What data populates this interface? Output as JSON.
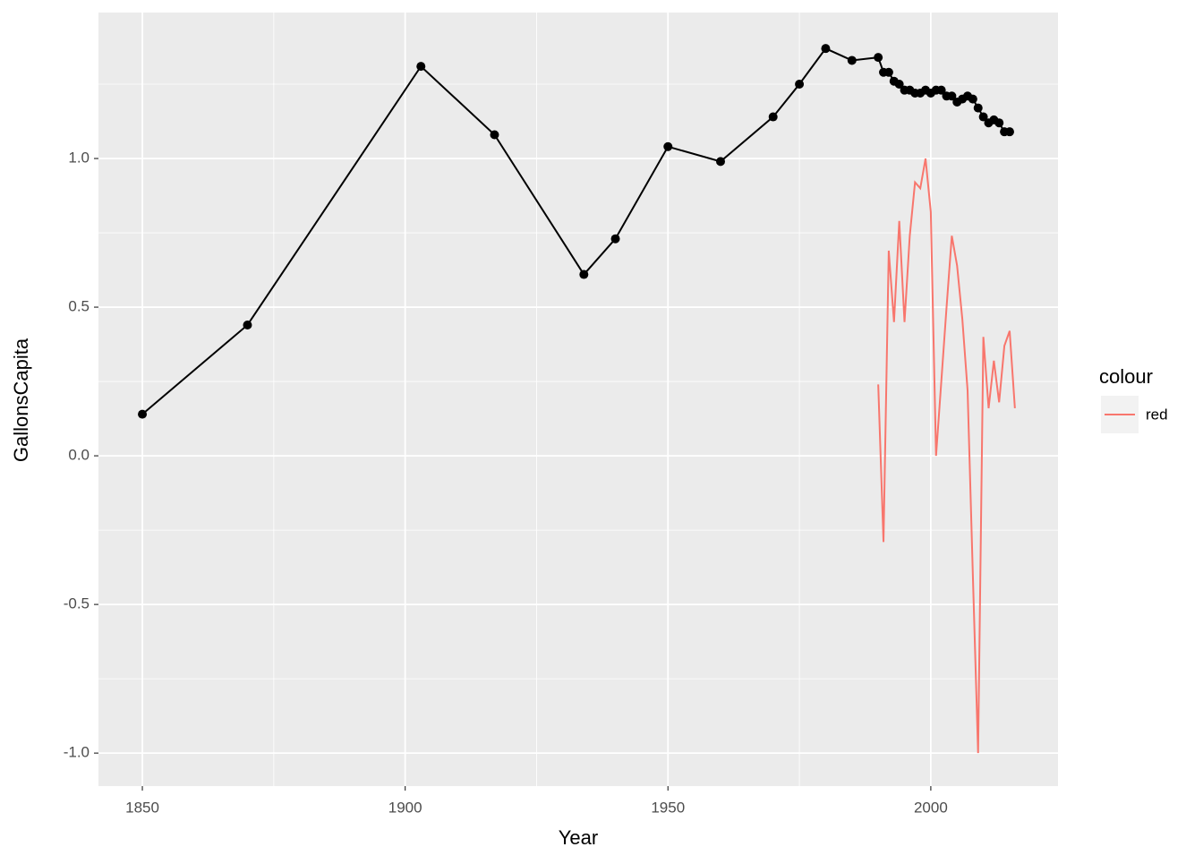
{
  "chart_data": {
    "type": "line",
    "x_label": "Year",
    "y_label": "GallonsCapita",
    "legend_title": "colour",
    "legend_position": "right",
    "xlim": [
      1841.65,
      2024.2
    ],
    "ylim": [
      -1.111,
      1.491
    ],
    "xticks": [
      1850,
      1900,
      1950,
      2000
    ],
    "yticks": [
      {
        "value": -1,
        "label": "-1.0"
      },
      {
        "value": -0.5,
        "label": "-0.5"
      },
      {
        "value": 0,
        "label": "0.0"
      },
      {
        "value": 0.5,
        "label": "0.5"
      },
      {
        "value": 1,
        "label": "1.0"
      }
    ],
    "grid": true,
    "series": [
      {
        "color": "#000000",
        "markers": true,
        "x": [
          1850,
          1870,
          1903,
          1917,
          1934,
          1940,
          1950,
          1960,
          1970,
          1975,
          1980,
          1985,
          1990,
          1991,
          1992,
          1993,
          1994,
          1995,
          1996,
          1997,
          1998,
          1999,
          2000,
          2001,
          2002,
          2003,
          2004,
          2005,
          2006,
          2007,
          2008,
          2009,
          2010,
          2011,
          2012,
          2013,
          2014,
          2015
        ],
        "values": [
          0.14,
          0.44,
          1.31,
          1.08,
          0.61,
          0.73,
          1.04,
          0.99,
          1.14,
          1.25,
          1.37,
          1.33,
          1.34,
          1.29,
          1.29,
          1.26,
          1.25,
          1.23,
          1.23,
          1.22,
          1.22,
          1.23,
          1.22,
          1.23,
          1.23,
          1.21,
          1.21,
          1.19,
          1.2,
          1.21,
          1.2,
          1.17,
          1.14,
          1.12,
          1.13,
          1.12,
          1.09,
          1.09
        ]
      },
      {
        "name": "red",
        "color": "#f8766d",
        "markers": false,
        "legend": true,
        "x": [
          1990,
          1991,
          1992,
          1993,
          1994,
          1995,
          1996,
          1997,
          1998,
          1999,
          2000,
          2001,
          2002,
          2003,
          2004,
          2005,
          2006,
          2007,
          2008,
          2009,
          2010,
          2011,
          2012,
          2013,
          2014,
          2015,
          2016
        ],
        "values": [
          0.24,
          -0.29,
          0.69,
          0.45,
          0.79,
          0.45,
          0.74,
          0.92,
          0.9,
          1.0,
          0.82,
          0.0,
          0.25,
          0.5,
          0.74,
          0.64,
          0.46,
          0.22,
          -0.4,
          -1.0,
          0.4,
          0.16,
          0.32,
          0.18,
          0.37,
          0.42,
          0.16
        ]
      }
    ]
  }
}
